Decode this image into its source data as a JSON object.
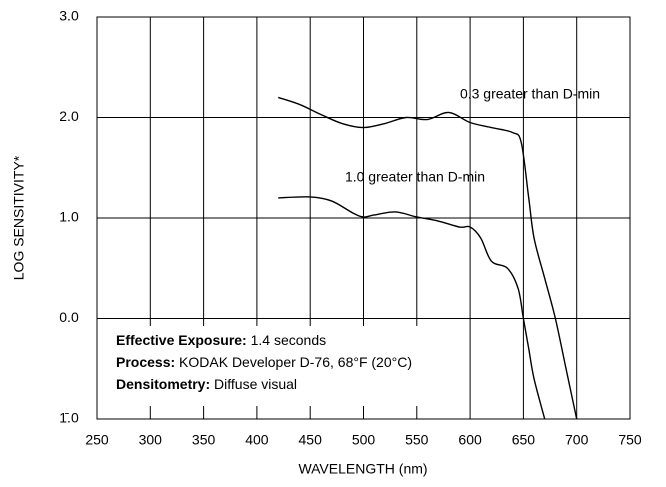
{
  "chart_data": {
    "type": "line",
    "xlabel": "WAVELENGTH (nm)",
    "ylabel": "LOG SENSITIVITY*",
    "xlim": [
      250,
      750
    ],
    "xticks": [
      250,
      300,
      350,
      400,
      450,
      500,
      550,
      600,
      650,
      700,
      750
    ],
    "ylim": [
      -1,
      3
    ],
    "yticks": [
      {
        "value": -1,
        "label": "1̄.0"
      },
      {
        "value": 0,
        "label": "0.0"
      },
      {
        "value": 1,
        "label": "1.0"
      },
      {
        "value": 2,
        "label": "2.0"
      },
      {
        "value": 3,
        "label": "3.0"
      }
    ],
    "grid": true,
    "series": [
      {
        "name": "0.3 greater than D-min",
        "color": "#000000",
        "x": [
          420,
          440,
          460,
          480,
          500,
          520,
          540,
          560,
          580,
          600,
          620,
          640,
          648,
          655,
          660,
          670,
          680,
          690,
          700
        ],
        "values": [
          2.2,
          2.13,
          2.03,
          1.94,
          1.9,
          1.94,
          2.0,
          1.98,
          2.05,
          1.95,
          1.9,
          1.85,
          1.75,
          1.2,
          0.8,
          0.4,
          0.0,
          -0.5,
          -1.0
        ]
      },
      {
        "name": "1.0 greater than D-min",
        "color": "#000000",
        "x": [
          420,
          450,
          470,
          490,
          500,
          510,
          530,
          550,
          570,
          590,
          600,
          610,
          620,
          635,
          645,
          650,
          655,
          660,
          670
        ],
        "values": [
          1.2,
          1.21,
          1.17,
          1.05,
          1.01,
          1.03,
          1.06,
          1.01,
          0.97,
          0.91,
          0.91,
          0.8,
          0.57,
          0.5,
          0.3,
          0.0,
          -0.3,
          -0.6,
          -1.0
        ]
      }
    ],
    "annotations": [
      {
        "bold": "Effective Exposure:",
        "text": " 1.4 seconds"
      },
      {
        "bold": "Process:",
        "text": " KODAK Developer D-76, 68°F (20°C)"
      },
      {
        "bold": "Densitometry:",
        "text": " Diffuse visual"
      }
    ]
  }
}
